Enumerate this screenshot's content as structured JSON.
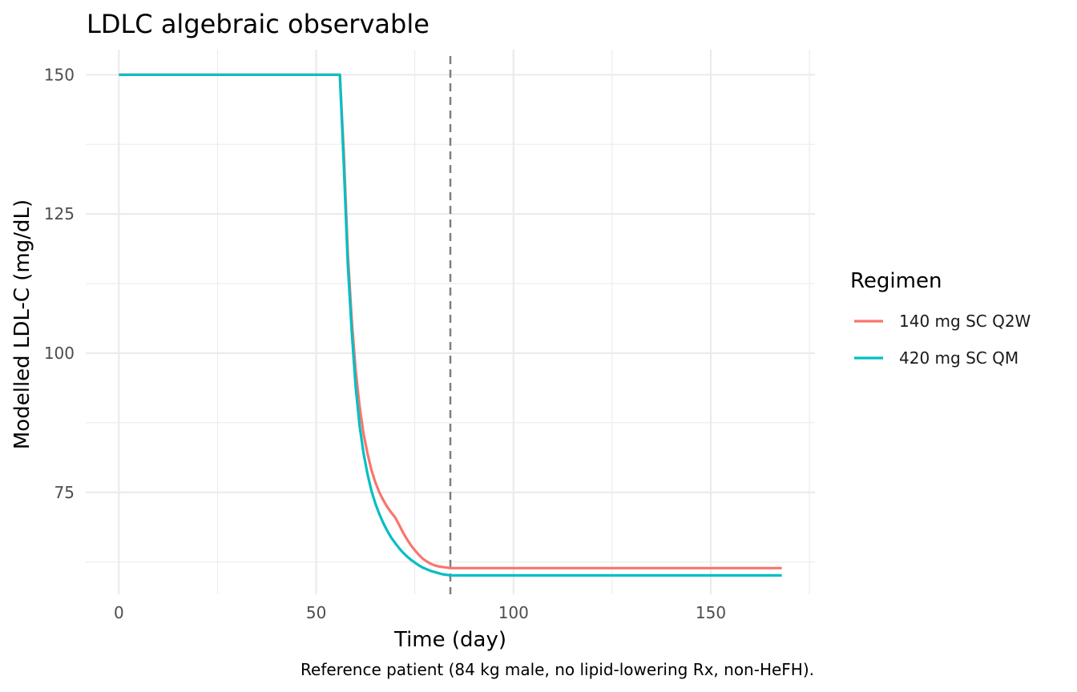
{
  "chart_data": {
    "type": "line",
    "title": "LDLC algebraic observable",
    "xlabel": "Time (day)",
    "ylabel": "Modelled LDL-C (mg/dL)",
    "caption": "Reference patient (84 kg male, no lipid-lowering Rx, non-HeFH).",
    "xlim": [
      -8.4,
      176.4
    ],
    "ylim": [
      56.7,
      154.5
    ],
    "x_ticks": [
      0,
      50,
      100,
      150
    ],
    "x_tick_labels": [
      "0",
      "50",
      "100",
      "150"
    ],
    "y_ticks": [
      75,
      100,
      125,
      150
    ],
    "y_tick_labels": [
      "75",
      "100",
      "125",
      "150"
    ],
    "grid": true,
    "reference_line": {
      "x": 84,
      "style": "dashed",
      "color": "#7f7f7f"
    },
    "legend": {
      "title": "Regimen",
      "position": "right"
    },
    "series": [
      {
        "name": "140 mg SC Q2W",
        "color": "#F8766D",
        "x": [
          0,
          56,
          57,
          58,
          59,
          60,
          61,
          62,
          63,
          64,
          65,
          66,
          67,
          68,
          69,
          70,
          71,
          72,
          73,
          74,
          75,
          76,
          77,
          78,
          79,
          80,
          81,
          82,
          83,
          84,
          90,
          168
        ],
        "y": [
          150,
          150,
          136,
          118,
          106,
          97,
          90.5,
          85.5,
          82,
          79,
          76.8,
          75,
          73.6,
          72.4,
          71.4,
          70.5,
          69.2,
          67.8,
          66.6,
          65.5,
          64.6,
          63.8,
          63.1,
          62.6,
          62.2,
          61.9,
          61.7,
          61.6,
          61.5,
          61.4,
          61.4,
          61.4
        ]
      },
      {
        "name": "420 mg SC QM",
        "color": "#00BFC4",
        "x": [
          0,
          56,
          57,
          58,
          59,
          60,
          61,
          62,
          63,
          64,
          65,
          66,
          67,
          68,
          69,
          70,
          71,
          72,
          73,
          74,
          75,
          76,
          77,
          78,
          79,
          80,
          81,
          82,
          83,
          84,
          90,
          168
        ],
        "y": [
          150,
          150,
          134,
          116,
          104,
          94,
          87,
          82,
          78.3,
          75.3,
          73,
          71.1,
          69.5,
          68.1,
          66.9,
          65.9,
          65,
          64.2,
          63.5,
          62.9,
          62.4,
          61.9,
          61.5,
          61.2,
          60.9,
          60.7,
          60.5,
          60.3,
          60.2,
          60.1,
          60.1,
          60.1
        ]
      }
    ]
  }
}
